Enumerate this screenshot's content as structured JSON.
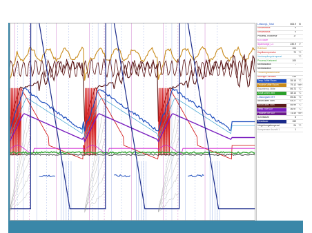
{
  "chart_data": {
    "type": "line",
    "title": "",
    "xlabel": "",
    "ylabel": "",
    "x_range": [
      0,
      100
    ],
    "y_range": [
      0,
      100
    ],
    "grid": false,
    "legend_placement": "right",
    "legend": [
      {
        "name": "Leistung1_Total",
        "value": "606.9",
        "unit": "W",
        "color": "#1f4fbf",
        "fill": false
      },
      {
        "name": "Kessestatus",
        "value": "0",
        "unit": "",
        "color": "#d42020",
        "fill": false
      },
      {
        "name": "Kessestatus",
        "value": "0",
        "unit": "",
        "color": "#d42020",
        "fill": false
      },
      {
        "name": "Prozess-Trockenur",
        "value": "17",
        "unit": "",
        "color": "#222222",
        "fill": false
      },
      {
        "name": "KLV-Stufe",
        "value": "",
        "unit": "",
        "color": "#d020d0",
        "fill": false
      },
      {
        "name": "Spannung2_L1",
        "value": "230.9",
        "unit": "V",
        "color": "#d020d0",
        "fill": false
      },
      {
        "name": "Rohrluce",
        "value": "104",
        "unit": "",
        "color": "#c88a1a",
        "fill": false
      },
      {
        "name": "Kapillaremperatur",
        "value": "72",
        "unit": "°C",
        "color": "#d42020",
        "fill": false
      },
      {
        "name": "Verdampfungstemperat",
        "value": "",
        "unit": "°C",
        "color": "#3aa0d0",
        "fill": false
      },
      {
        "name": "Prozess-Kreisvent",
        "value": "100",
        "unit": "",
        "color": "#2aa02a",
        "fill": false
      },
      {
        "name": "Niveaustatus",
        "value": "-",
        "unit": "",
        "color": "#222222",
        "fill": false
      },
      {
        "name": "Niveaustatus",
        "value": "",
        "unit": "",
        "color": "#222222",
        "fill": false
      },
      {
        "name": "Trockengradwunsche",
        "value": "",
        "unit": "",
        "color": "#c88a1a",
        "fill": false
      },
      {
        "name": "Anzeige Drehzahl",
        "value": "319",
        "unit": "",
        "color": "#d42020",
        "fill": false
      },
      {
        "name": "Temp. Mitte Raum",
        "value": "35.15",
        "unit": "°C",
        "color": "#1f4fbf",
        "fill": true
      },
      {
        "name": "Feuchte Mitte Raum",
        "value": "79.12",
        "unit": "%rH",
        "color": "#c88a1a",
        "fill": true
      },
      {
        "name": "Raumtemp. Mitte",
        "value": "59.72",
        "unit": "°C",
        "color": "#6a6a6a",
        "fill": false
      },
      {
        "name": "Zuluft unten vent",
        "value": "38.14",
        "unit": "°C",
        "color": "#2aa02a",
        "fill": true
      },
      {
        "name": "Leistungsein WT",
        "value": "59.31",
        "unit": "°C",
        "color": "#1f4fbf",
        "fill": false
      },
      {
        "name": "Abluft oben vorn",
        "value": "53.27",
        "unit": "°C",
        "color": "#222222",
        "fill": false
      },
      {
        "name": "Abluft oben vorn",
        "value": "55.99",
        "unit": "°C",
        "color": "#5a1a1a",
        "fill": true
      },
      {
        "name": "Temp. vor KLV",
        "value": "36.97",
        "unit": "°C",
        "color": "#7a1fbf",
        "fill": true
      },
      {
        "name": "Feuchte vor KLV",
        "value": "74.49",
        "unit": "%rH",
        "color": "#6a1a8a",
        "fill": true
      },
      {
        "name": "Schrittstufe",
        "value": "8",
        "unit": "",
        "color": "#222222",
        "fill": false
      },
      {
        "name": "Restdauer",
        "value": "159",
        "unit": "",
        "color": "#1a2a8a",
        "fill": true
      },
      {
        "name": "Umgebungstemperat",
        "value": "24",
        "unit": "°C",
        "color": "#222222",
        "fill": false
      },
      {
        "name": "Kompressor Anzahl 1",
        "value": "1",
        "unit": "",
        "color": "#888888",
        "fill": false
      }
    ],
    "cycle_starts": [
      0,
      30.5,
      60.5
    ],
    "cycle_length": 30
  }
}
